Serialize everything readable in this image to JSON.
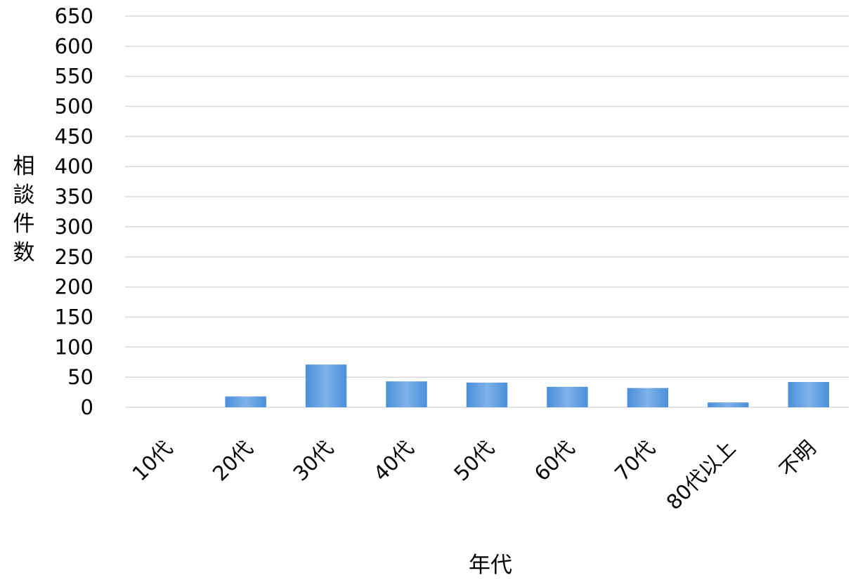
{
  "chart_data": {
    "type": "bar",
    "categories": [
      "10代",
      "20代",
      "30代",
      "40代",
      "50代",
      "60代",
      "70代",
      "80代以上",
      "不明"
    ],
    "values": [
      0,
      18,
      71,
      43,
      41,
      34,
      32,
      8,
      42
    ],
    "title": "",
    "xlabel": "年代",
    "ylabel": "相談件数",
    "ylim": [
      0,
      650
    ],
    "ytick_step": 50,
    "grid": true,
    "legend": "none",
    "bar_color": "#4a8fd9",
    "bar_color_light": "#7fb2ea",
    "grid_color": "#d9d9d9"
  }
}
